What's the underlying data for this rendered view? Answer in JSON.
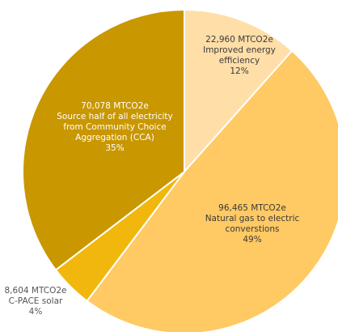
{
  "chart_data": {
    "type": "pie",
    "title": "",
    "unit": "MTCO2e",
    "slices": [
      {
        "value": 22960,
        "value_label": "22,960 MTCO2e",
        "name_lines": [
          "Improved energy",
          "efficiency"
        ],
        "percent_label": "12%",
        "color": "#FFDEA8",
        "label_color": "#3a3a3a"
      },
      {
        "value": 96465,
        "value_label": "96,465 MTCO2e",
        "name_lines": [
          "Natural gas to electric",
          "converstions"
        ],
        "percent_label": "49%",
        "color": "#FFC964",
        "label_color": "#3a3a3a"
      },
      {
        "value": 8604,
        "value_label": "8,604 MTCO2e",
        "name_lines": [
          "C-PACE solar"
        ],
        "percent_label": "4%",
        "color": "#F1B70C",
        "label_color": "#555555"
      },
      {
        "value": 70078,
        "value_label": "70,078 MTCO2e",
        "name_lines": [
          "Source half of all electricity",
          "from Community Choice",
          "Aggregation (CCA)"
        ],
        "percent_label": "35%",
        "color": "#C99700",
        "label_color": "#ffffff"
      }
    ],
    "start_angle_deg": 0,
    "direction": "clockwise",
    "border_color": "#ffffff"
  }
}
